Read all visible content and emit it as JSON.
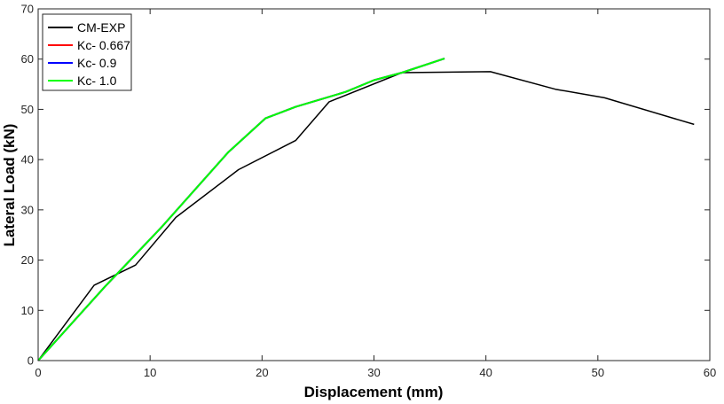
{
  "chart_data": {
    "type": "line",
    "title": "",
    "xlabel": "Displacement (mm)",
    "ylabel": "Lateral Load (kN)",
    "xlim": [
      0,
      60
    ],
    "ylim": [
      0,
      70
    ],
    "xticks": [
      0,
      10,
      20,
      30,
      40,
      50,
      60
    ],
    "yticks": [
      0,
      10,
      20,
      30,
      40,
      50,
      60,
      70
    ],
    "grid": false,
    "legend_position": "top-left",
    "series": [
      {
        "name": "CM-EXP",
        "color": "#000000",
        "x": [
          0,
          5.0,
          8.7,
          12.3,
          17.9,
          23.0,
          26.0,
          32.5,
          40.4,
          46.2,
          50.6,
          58.6
        ],
        "y": [
          0,
          15.0,
          19.0,
          28.5,
          38.0,
          43.8,
          51.5,
          57.3,
          57.5,
          54.0,
          52.3,
          47.0
        ]
      },
      {
        "name": "Kc- 0.667",
        "color": "#ff0000",
        "x": [
          0,
          6.0,
          11.0,
          17.0,
          20.3,
          23.0,
          27.5,
          30.0,
          32.5,
          36.3
        ],
        "y": [
          0,
          14.8,
          26.5,
          41.5,
          48.2,
          50.5,
          53.5,
          55.8,
          57.3,
          60.1
        ]
      },
      {
        "name": "Kc- 0.9",
        "color": "#0000ff",
        "x": [
          0,
          6.0,
          11.0,
          17.0,
          20.3,
          23.0,
          27.5,
          30.0,
          32.5,
          36.3
        ],
        "y": [
          0,
          14.8,
          26.5,
          41.5,
          48.2,
          50.5,
          53.5,
          55.8,
          57.3,
          60.1
        ]
      },
      {
        "name": "Kc- 1.0",
        "color": "#00ff00",
        "x": [
          0,
          6.0,
          11.0,
          17.0,
          20.3,
          23.0,
          27.5,
          30.0,
          32.5,
          36.3
        ],
        "y": [
          0,
          14.8,
          26.5,
          41.5,
          48.2,
          50.5,
          53.5,
          55.8,
          57.3,
          60.1
        ]
      }
    ]
  }
}
